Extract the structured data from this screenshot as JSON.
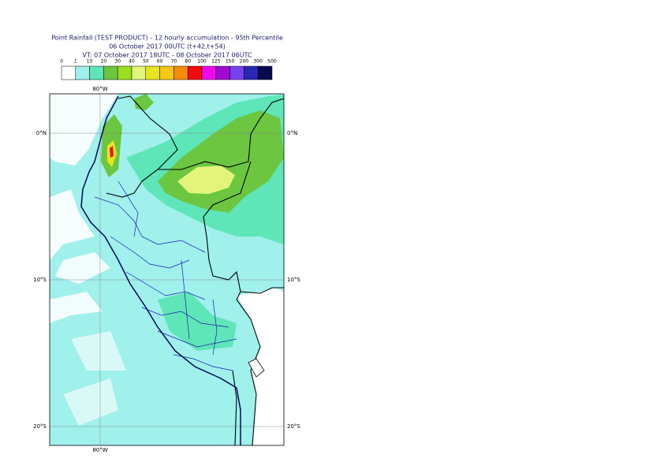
{
  "header": {
    "title": [
      "Point Rainfall (TEST PRODUCT) - 12 hourly accumulation - 95th Percentile",
      "06 October 2017 00UTC (t+42,t+54)",
      "VT: 07 October 2017 18UTC - 08 October 2017 06UTC"
    ]
  },
  "legend": {
    "thresholds": [
      0,
      1,
      10,
      20,
      30,
      40,
      50,
      60,
      70,
      80,
      100,
      125,
      150,
      200,
      300,
      500
    ],
    "colors": [
      "#ffffff",
      "#a0f0ec",
      "#5ee6b8",
      "#6cc640",
      "#9be01e",
      "#e2f57a",
      "#e6e61e",
      "#f5c814",
      "#f58c0a",
      "#f50a0a",
      "#f00aeb",
      "#a00ad2",
      "#7840f0",
      "#2828b4",
      "#0a0a50"
    ]
  },
  "map": {
    "lon_labels": [
      "80°W"
    ],
    "lat_labels": [
      "0°N",
      "10°S",
      "20°S"
    ]
  }
}
